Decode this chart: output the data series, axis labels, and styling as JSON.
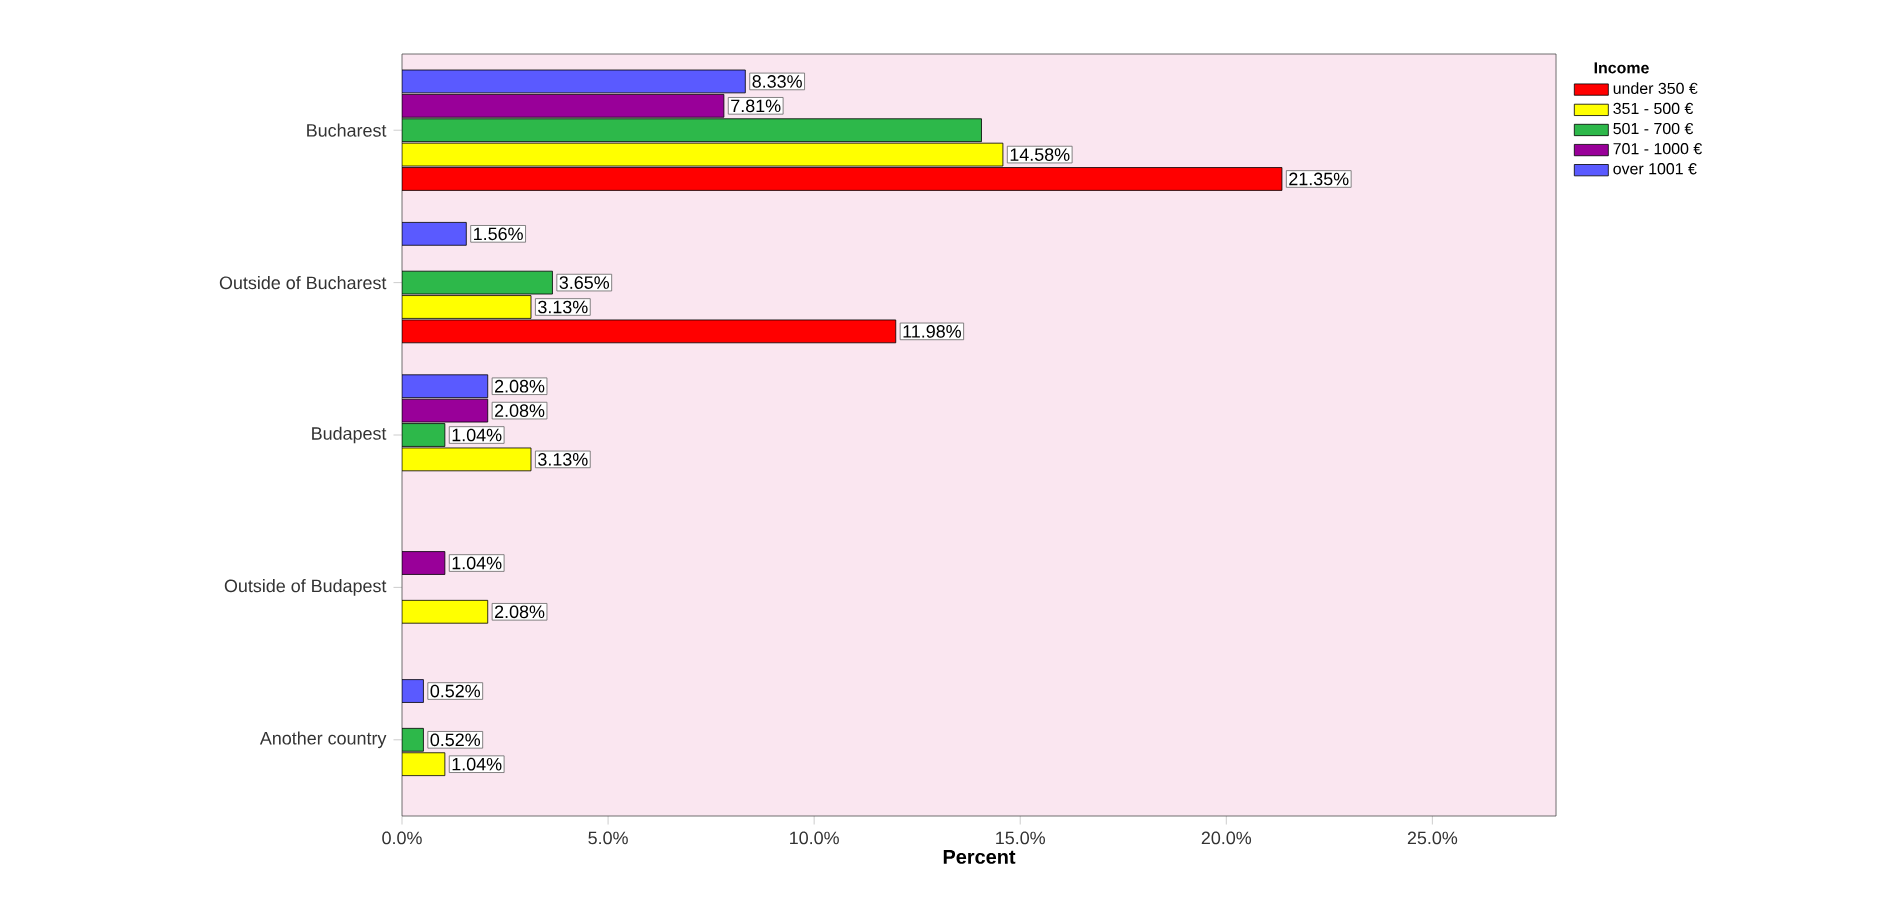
{
  "chart_data": {
    "type": "bar",
    "orientation": "horizontal",
    "xlabel": "Percent",
    "legend_title": "Income",
    "legend": "right",
    "categories": [
      "Bucharest",
      "Outside of Bucharest",
      "Budapest",
      "Outside of Budapest",
      "Another country"
    ],
    "xlim": [
      0,
      28
    ],
    "xticks": [
      {
        "value": 0,
        "label": "0.0%"
      },
      {
        "value": 5,
        "label": "5.0%"
      },
      {
        "value": 10,
        "label": "10.0%"
      },
      {
        "value": 15,
        "label": "15.0%"
      },
      {
        "value": 20,
        "label": "20.0%"
      },
      {
        "value": 25,
        "label": "25.0%"
      }
    ],
    "series": [
      {
        "name": "under 350 €",
        "color": "#ff0000",
        "values": [
          21.35,
          11.98,
          null,
          null,
          null
        ],
        "value_labels": [
          "21.35%",
          "11.98%",
          null,
          null,
          null
        ]
      },
      {
        "name": "351 - 500 €",
        "color": "#ffff00",
        "values": [
          14.58,
          3.13,
          3.13,
          2.08,
          1.04
        ],
        "value_labels": [
          "14.58%",
          "3.13%",
          "3.13%",
          "2.08%",
          "1.04%"
        ]
      },
      {
        "name": "501 - 700 €",
        "color": "#2db84a",
        "values": [
          14.06,
          3.65,
          1.04,
          null,
          0.52
        ],
        "value_labels": [
          null,
          "3.65%",
          "1.04%",
          null,
          "0.52%"
        ]
      },
      {
        "name": "701 - 1000 €",
        "color": "#990099",
        "values": [
          7.81,
          null,
          2.08,
          1.04,
          null
        ],
        "value_labels": [
          "7.81%",
          null,
          "2.08%",
          "1.04%",
          null
        ]
      },
      {
        "name": "over 1001 €",
        "color": "#5a5aff",
        "values": [
          8.33,
          1.56,
          2.08,
          null,
          0.52
        ],
        "value_labels": [
          "8.33%",
          "1.56%",
          "2.08%",
          null,
          "0.52%"
        ]
      }
    ]
  }
}
